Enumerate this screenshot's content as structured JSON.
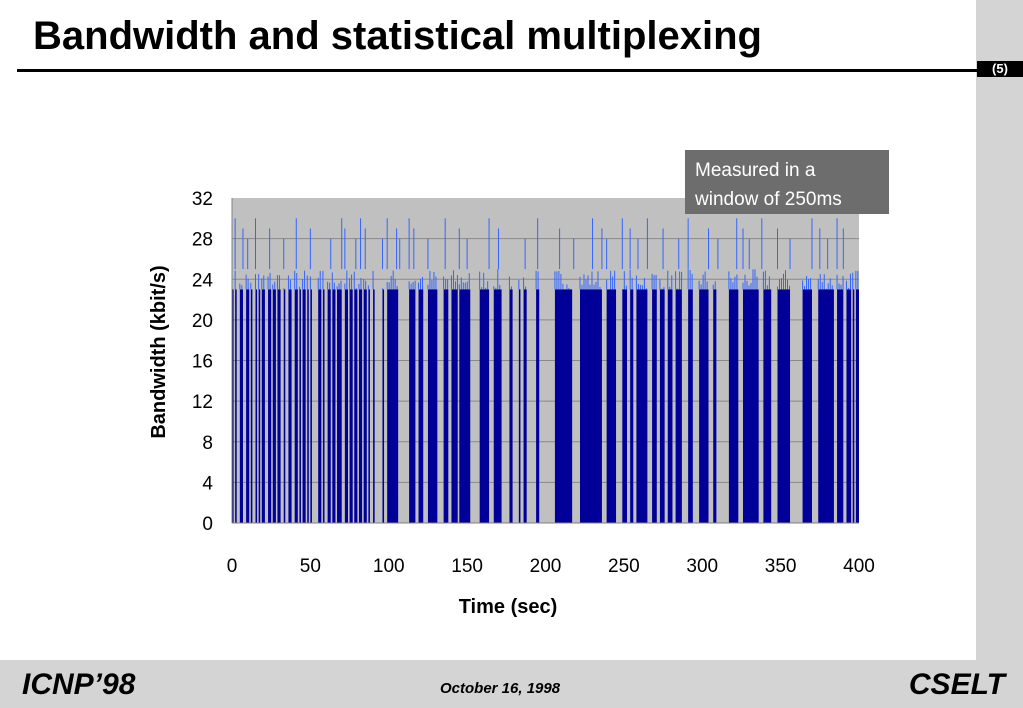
{
  "slide": {
    "title": "Bandwidth and statistical multiplexing",
    "page_label": "(5)",
    "footer_left": "ICNP’98",
    "footer_center": "October 16, 1998",
    "footer_right": "CSELT"
  },
  "chart_data": {
    "type": "area",
    "title": "",
    "xlabel": "Time (sec)",
    "ylabel": "Bandwidth (kbit/s)",
    "xlim": [
      0,
      400
    ],
    "ylim": [
      0,
      32
    ],
    "x_ticks": [
      0,
      50,
      100,
      150,
      200,
      250,
      300,
      350,
      400
    ],
    "y_ticks": [
      0,
      4,
      8,
      12,
      16,
      20,
      24,
      28,
      32
    ],
    "grid": true,
    "plot_background": "#c0c0c0",
    "series": [
      {
        "color": "#000099",
        "highlight_color": "#3366ff",
        "typical_level": 23,
        "peak_level": 25,
        "spike_level": 30,
        "active_intervals": [
          [
            0,
            1
          ],
          [
            2,
            3
          ],
          [
            5,
            7
          ],
          [
            9,
            11
          ],
          [
            12,
            13
          ],
          [
            15,
            16
          ],
          [
            17,
            18
          ],
          [
            19,
            21
          ],
          [
            23,
            25
          ],
          [
            26,
            28
          ],
          [
            29,
            31
          ],
          [
            33,
            34
          ],
          [
            36,
            38
          ],
          [
            40,
            42
          ],
          [
            43,
            44
          ],
          [
            45,
            47
          ],
          [
            48,
            49
          ],
          [
            50,
            51
          ],
          [
            55,
            57
          ],
          [
            58,
            59
          ],
          [
            61,
            63
          ],
          [
            64,
            66
          ],
          [
            67,
            70
          ],
          [
            72,
            74
          ],
          [
            75,
            77
          ],
          [
            78,
            80
          ],
          [
            81,
            83
          ],
          [
            84,
            86
          ],
          [
            87,
            88
          ],
          [
            90,
            91
          ],
          [
            96,
            97
          ],
          [
            99,
            106
          ],
          [
            113,
            117
          ],
          [
            119,
            122
          ],
          [
            125,
            131
          ],
          [
            135,
            138
          ],
          [
            140,
            144
          ],
          [
            145,
            152
          ],
          [
            158,
            164
          ],
          [
            167,
            172
          ],
          [
            177,
            179
          ],
          [
            183,
            184
          ],
          [
            186,
            188
          ],
          [
            194,
            196
          ],
          [
            206,
            217
          ],
          [
            222,
            236
          ],
          [
            239,
            245
          ],
          [
            249,
            252
          ],
          [
            254,
            256
          ],
          [
            258,
            265
          ],
          [
            268,
            271
          ],
          [
            273,
            276
          ],
          [
            278,
            281
          ],
          [
            283,
            287
          ],
          [
            291,
            294
          ],
          [
            298,
            304
          ],
          [
            307,
            309
          ],
          [
            317,
            323
          ],
          [
            326,
            336
          ],
          [
            339,
            344
          ],
          [
            348,
            356
          ],
          [
            364,
            370
          ],
          [
            374,
            384
          ],
          [
            386,
            390
          ],
          [
            392,
            395
          ],
          [
            396,
            397
          ],
          [
            398,
            400
          ]
        ],
        "spikes_x": [
          2,
          7,
          10,
          15,
          24,
          33,
          41,
          50,
          63,
          70,
          72,
          79,
          82,
          85,
          96,
          99,
          105,
          107,
          113,
          116,
          125,
          136,
          145,
          150,
          164,
          170,
          187,
          195,
          209,
          218,
          230,
          236,
          239,
          249,
          254,
          259,
          265,
          275,
          285,
          291,
          304,
          310,
          322,
          326,
          330,
          338,
          348,
          356,
          370,
          375,
          380,
          386,
          390
        ]
      }
    ],
    "annotation": "Measured in a window of 250ms"
  }
}
